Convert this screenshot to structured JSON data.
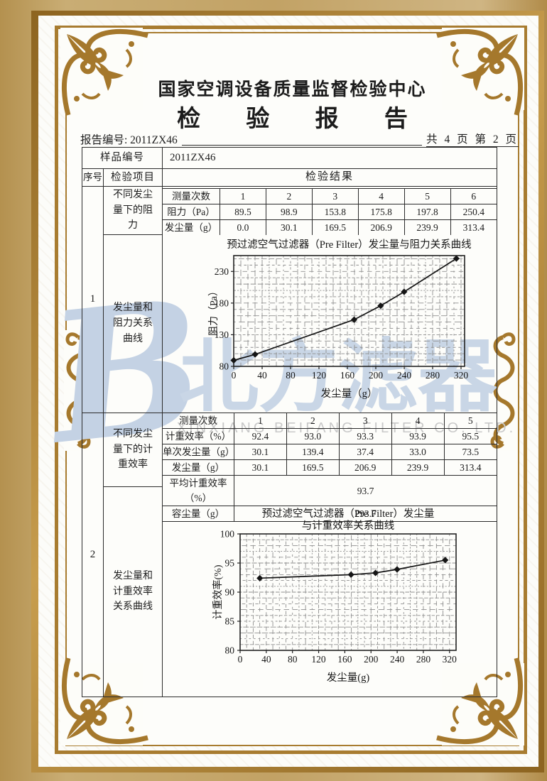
{
  "page_meta": {
    "center_name": "国家空调设备质量监督检验中心",
    "report_title": "检 验 报 告",
    "report_no_line": "报告编号: 2011ZX46",
    "pagination": "共 4 页 第 2 页"
  },
  "sample": {
    "label": "样品编号",
    "value": "2011ZX46"
  },
  "headers": {
    "seq": "序号",
    "item": "检验项目",
    "result": "检验结果"
  },
  "section1": {
    "seq": "1",
    "item_top": "不同发尘量下的阻力",
    "item_bottom": "发尘量和阻力关系曲线",
    "table": {
      "row_labels": [
        "测量次数",
        "阻力（Pa）",
        "发尘量（g）"
      ],
      "columns": [
        "1",
        "2",
        "3",
        "4",
        "5",
        "6"
      ],
      "resistance": [
        "89.5",
        "98.9",
        "153.8",
        "175.8",
        "197.8",
        "250.4"
      ],
      "dust": [
        "0.0",
        "30.1",
        "169.5",
        "206.9",
        "239.9",
        "313.4"
      ]
    }
  },
  "section2": {
    "seq": "2",
    "item_top": "不同发尘量下的计重效率",
    "item_bottom": "发尘量和计重效率关系曲线",
    "table": {
      "row_labels": [
        "测量次数",
        "计重效率（%）",
        "单次发尘量（g）",
        "发尘量（g）",
        "平均计重效率（%）",
        "容尘量（g）"
      ],
      "columns": [
        "1",
        "2",
        "3",
        "4",
        "5"
      ],
      "efficiency": [
        "92.4",
        "93.0",
        "93.3",
        "93.9",
        "95.5"
      ],
      "single_dust": [
        "30.1",
        "139.4",
        "37.4",
        "33.0",
        "73.5"
      ],
      "dust": [
        "30.1",
        "169.5",
        "206.9",
        "239.9",
        "313.4"
      ],
      "avg_efficiency": "93.7",
      "dust_capacity": "293.7"
    }
  },
  "watermark": {
    "logo_letter": "B",
    "cn": "北方滤器",
    "en": "XINXIANG BEIFANG FILTER CO. LTD.",
    "cn_color": "#c9d6e6",
    "en_color": "#c9c9c9"
  },
  "frame_colors": {
    "gold": "#a87c30",
    "tan": "#c2a265",
    "ornament": "#a5782c"
  },
  "chart_data": [
    {
      "type": "line",
      "title": "预过滤空气过滤器（Pre Filter）发尘量与阻力关系曲线",
      "x": [
        0,
        30.1,
        169.5,
        206.9,
        239.9,
        313.4
      ],
      "y": [
        89.5,
        98.9,
        153.8,
        175.8,
        197.8,
        250.4
      ],
      "xlabel": "发尘量（g）",
      "ylabel": "阻力（Pa）",
      "xlim": [
        0,
        325
      ],
      "ylim": [
        80,
        255
      ],
      "xticks": [
        0,
        40,
        80,
        120,
        160,
        200,
        240,
        280,
        320
      ],
      "yticks": [
        80,
        130,
        180,
        230
      ],
      "grid": true,
      "legend": "none",
      "marker": "diamond",
      "line_color": "#151515"
    },
    {
      "type": "line",
      "title_lines": [
        "预过滤空气过滤器（Pre Filter）发尘量",
        "与计重效率关系曲线"
      ],
      "x": [
        30.1,
        169.5,
        206.9,
        239.9,
        313.4
      ],
      "y": [
        92.4,
        93.0,
        93.3,
        93.9,
        95.5
      ],
      "xlabel": "发尘量(g)",
      "ylabel": "计重效率(%)",
      "xlim": [
        0,
        330
      ],
      "ylim": [
        80,
        100
      ],
      "xticks": [
        0,
        40,
        80,
        120,
        160,
        200,
        240,
        280,
        320
      ],
      "yticks": [
        80,
        85,
        90,
        95,
        100
      ],
      "grid": true,
      "legend": "none",
      "marker": "diamond",
      "line_color": "#151515"
    }
  ]
}
